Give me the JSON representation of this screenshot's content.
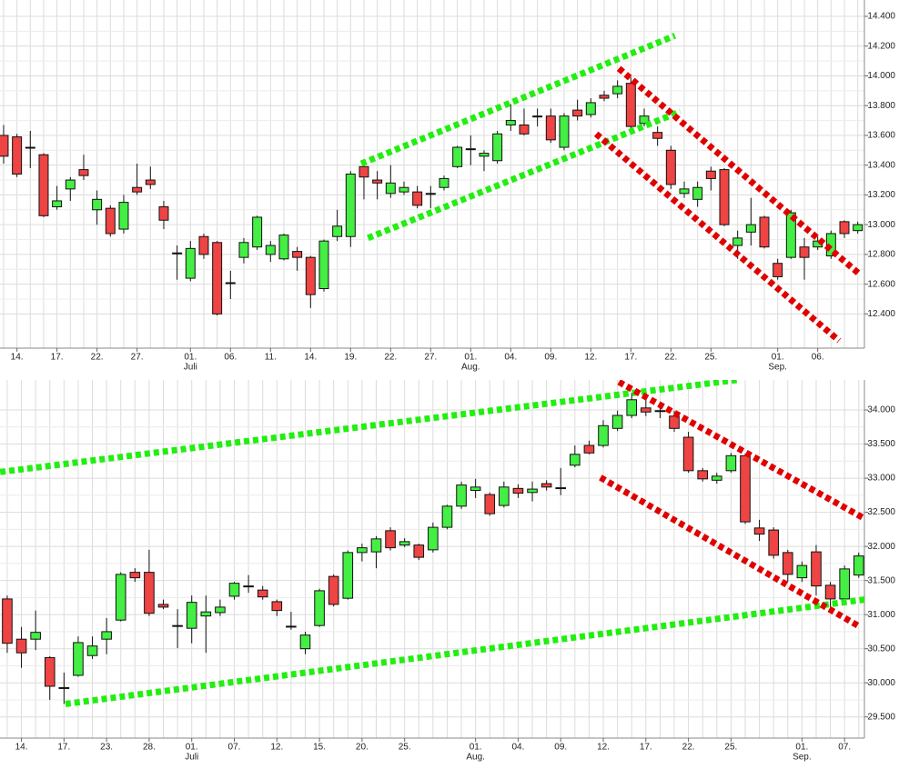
{
  "chart_data": [
    {
      "type": "candlestick",
      "categories": [
        null,
        "14.",
        null,
        null,
        "17.",
        null,
        null,
        "22.",
        null,
        null,
        "27.",
        null,
        null,
        null,
        "01.",
        null,
        null,
        "06.",
        null,
        null,
        "11.",
        null,
        null,
        "14.",
        null,
        null,
        "19.",
        null,
        null,
        "22.",
        null,
        null,
        "27.",
        null,
        null,
        "01.",
        null,
        null,
        "04.",
        null,
        null,
        "09.",
        null,
        null,
        "12.",
        null,
        null,
        "17.",
        null,
        null,
        "22.",
        null,
        null,
        "25.",
        null,
        null,
        null,
        null,
        "01.",
        null,
        null,
        "06.",
        null,
        null,
        null
      ],
      "sublabels": [
        null,
        null,
        null,
        null,
        null,
        null,
        null,
        null,
        null,
        null,
        null,
        null,
        null,
        null,
        "Juli",
        null,
        null,
        null,
        null,
        null,
        null,
        null,
        null,
        null,
        null,
        null,
        null,
        null,
        null,
        null,
        null,
        null,
        null,
        null,
        null,
        "Aug.",
        null,
        null,
        null,
        null,
        null,
        null,
        null,
        null,
        null,
        null,
        null,
        null,
        null,
        null,
        null,
        null,
        null,
        null,
        null,
        null,
        null,
        null,
        "Sep.",
        null,
        null,
        null,
        null,
        null,
        null
      ],
      "open": [
        13600,
        13590,
        13520,
        13470,
        13120,
        13240,
        13370,
        13100,
        13110,
        12970,
        13250,
        13300,
        13120,
        12810,
        12640,
        12920,
        12880,
        12610,
        12780,
        12850,
        12800,
        12770,
        12820,
        12780,
        12570,
        12920,
        12920,
        13390,
        13300,
        13210,
        13220,
        13220,
        13210,
        13250,
        13390,
        13510,
        13460,
        13430,
        13670,
        13670,
        13730,
        13730,
        13520,
        13770,
        13740,
        13870,
        13880,
        13950,
        13680,
        13620,
        13500,
        13210,
        13170,
        13360,
        13370,
        12860,
        12950,
        13050,
        12740,
        12780,
        12850,
        12850,
        12790,
        13020,
        12960
      ],
      "high": [
        13670,
        13610,
        13630,
        13480,
        13260,
        13320,
        13470,
        13230,
        13130,
        13200,
        13410,
        13390,
        13160,
        12860,
        12890,
        12940,
        12890,
        12690,
        12910,
        13060,
        12890,
        12940,
        12850,
        12790,
        12900,
        13100,
        13360,
        13420,
        13360,
        13400,
        13290,
        13260,
        13260,
        13330,
        13530,
        13600,
        13500,
        13630,
        13810,
        13780,
        13780,
        13780,
        13750,
        13840,
        13850,
        13900,
        13970,
        13990,
        13780,
        13660,
        13530,
        13290,
        13290,
        13390,
        13380,
        12960,
        13180,
        13060,
        12770,
        13100,
        12910,
        12920,
        12960,
        13030,
        13020
      ],
      "low": [
        13410,
        13320,
        13380,
        13050,
        13100,
        13160,
        13300,
        13000,
        12920,
        12940,
        13200,
        13240,
        12970,
        12630,
        12620,
        12770,
        12390,
        12500,
        12740,
        12830,
        12750,
        12760,
        12690,
        12440,
        12550,
        12890,
        12850,
        13170,
        13170,
        13180,
        13200,
        13110,
        13110,
        13230,
        13380,
        13400,
        13360,
        13410,
        13630,
        13600,
        13660,
        13550,
        13500,
        13700,
        13720,
        13830,
        13850,
        13640,
        13660,
        13530,
        13240,
        13180,
        13120,
        13230,
        12990,
        12770,
        12860,
        12840,
        12630,
        12770,
        12630,
        12830,
        12770,
        12910,
        12940
      ],
      "close": [
        13460,
        13340,
        13520,
        13060,
        13160,
        13300,
        13330,
        13170,
        12940,
        13150,
        13220,
        13270,
        13030,
        12810,
        12840,
        12800,
        12400,
        12610,
        12880,
        13050,
        12860,
        12930,
        12780,
        12530,
        12890,
        12990,
        13340,
        13320,
        13280,
        13280,
        13250,
        13130,
        13210,
        13310,
        13520,
        13510,
        13480,
        13610,
        13700,
        13610,
        13730,
        13570,
        13730,
        13730,
        13820,
        13850,
        13930,
        13660,
        13730,
        13580,
        13270,
        13240,
        13250,
        13310,
        13000,
        12910,
        13000,
        12850,
        12650,
        13080,
        12780,
        12890,
        12940,
        12940,
        13000
      ],
      "up_color": "#44ee44",
      "down_color": "#ee4444",
      "xlim": [
        -0.27,
        64.5
      ],
      "ylim": [
        12170,
        14510
      ],
      "yticks": [
        {
          "value": 12400,
          "label": "12.400"
        },
        {
          "value": 12600,
          "label": "12.600"
        },
        {
          "value": 12800,
          "label": "12.800"
        },
        {
          "value": 13000,
          "label": "13.000"
        },
        {
          "value": 13200,
          "label": "13.200"
        },
        {
          "value": 13400,
          "label": "13.400"
        },
        {
          "value": 13600,
          "label": "13.600"
        },
        {
          "value": 13800,
          "label": "13.800"
        },
        {
          "value": 14000,
          "label": "14.000"
        },
        {
          "value": 14200,
          "label": "14.200"
        },
        {
          "value": 14400,
          "label": "14.400"
        }
      ],
      "grid": true,
      "trendlines": [
        {
          "color": "#22ee11",
          "x": [
            26.8,
            50.3
          ],
          "y": [
            13410,
            14270
          ]
        },
        {
          "color": "#22ee11",
          "x": [
            27.3,
            50.7
          ],
          "y": [
            12910,
            13760
          ]
        },
        {
          "color": "#e00000",
          "x": [
            46.1,
            64.1
          ],
          "y": [
            14050,
            12670
          ]
        },
        {
          "color": "#e00000",
          "x": [
            44.4,
            62.6
          ],
          "y": [
            13610,
            12220
          ]
        }
      ]
    },
    {
      "type": "candlestick",
      "categories": [
        null,
        "14.",
        null,
        null,
        "17.",
        null,
        null,
        "23.",
        null,
        null,
        "28.",
        null,
        null,
        "01.",
        null,
        null,
        "07.",
        null,
        null,
        "12.",
        null,
        null,
        "15.",
        null,
        null,
        "20.",
        null,
        null,
        "25.",
        null,
        null,
        null,
        null,
        "01.",
        null,
        null,
        "04.",
        null,
        null,
        "09.",
        null,
        null,
        "12.",
        null,
        null,
        "17.",
        null,
        null,
        "22.",
        null,
        null,
        "25.",
        null,
        null,
        null,
        null,
        "01.",
        null,
        null,
        "07.",
        null
      ],
      "sublabels": [
        null,
        null,
        null,
        null,
        null,
        null,
        null,
        null,
        null,
        null,
        null,
        null,
        null,
        "Juli",
        null,
        null,
        null,
        null,
        null,
        null,
        null,
        null,
        null,
        null,
        null,
        null,
        null,
        null,
        null,
        null,
        null,
        null,
        null,
        "Aug.",
        null,
        null,
        null,
        null,
        null,
        null,
        null,
        null,
        null,
        null,
        null,
        null,
        null,
        null,
        null,
        null,
        null,
        null,
        null,
        null,
        null,
        null,
        "Sep.",
        null,
        null,
        null,
        null
      ],
      "open": [
        31230,
        30640,
        30640,
        30370,
        29930,
        30110,
        30400,
        30640,
        30920,
        31620,
        31620,
        31150,
        30840,
        30800,
        30980,
        31030,
        31270,
        31420,
        31360,
        31190,
        30830,
        30500,
        30840,
        31560,
        31240,
        31910,
        31920,
        32230,
        32020,
        32020,
        31950,
        32280,
        32590,
        32820,
        32760,
        32600,
        32850,
        32790,
        32920,
        32860,
        33190,
        33480,
        33480,
        33730,
        33920,
        34030,
        33990,
        33910,
        33600,
        33110,
        32970,
        33110,
        33330,
        32270,
        32240,
        31910,
        31540,
        31920,
        31430,
        31230,
        31580
      ],
      "high": [
        31280,
        30820,
        31060,
        30390,
        30150,
        30680,
        30680,
        30950,
        31620,
        31680,
        31950,
        31220,
        31080,
        31280,
        31280,
        31220,
        31480,
        31580,
        31420,
        31220,
        31040,
        30750,
        31380,
        31590,
        31940,
        32040,
        32150,
        32280,
        32120,
        32040,
        32350,
        32610,
        32950,
        32990,
        32790,
        32950,
        32910,
        32950,
        32970,
        33150,
        33480,
        33550,
        33850,
        33990,
        34250,
        34150,
        34110,
        33990,
        33680,
        33150,
        33080,
        33370,
        33360,
        32390,
        32280,
        31950,
        31780,
        32020,
        31480,
        31720,
        31910
      ],
      "low": [
        30440,
        30220,
        30480,
        29750,
        29690,
        30090,
        30350,
        30420,
        30900,
        31480,
        30980,
        31080,
        30510,
        30580,
        30440,
        30980,
        31220,
        31320,
        31220,
        30980,
        30780,
        30420,
        30820,
        31120,
        31220,
        31780,
        31680,
        31940,
        31990,
        31800,
        31910,
        32250,
        32550,
        32710,
        32450,
        32570,
        32710,
        32660,
        32820,
        32750,
        33160,
        33350,
        33450,
        33690,
        33880,
        33910,
        33880,
        33680,
        33080,
        32950,
        32920,
        33080,
        32330,
        32080,
        31820,
        31480,
        31480,
        31280,
        31110,
        31190,
        31540
      ],
      "close": [
        30580,
        30440,
        30740,
        29950,
        29930,
        30590,
        30540,
        30750,
        31590,
        31540,
        31020,
        31110,
        30840,
        31180,
        31040,
        31110,
        31460,
        31420,
        31260,
        31060,
        30830,
        30700,
        31350,
        31150,
        31910,
        31980,
        32110,
        31980,
        32070,
        31840,
        32280,
        32590,
        32900,
        32870,
        32480,
        32870,
        32780,
        32840,
        32870,
        32860,
        33350,
        33370,
        33770,
        33920,
        34150,
        33970,
        33990,
        33730,
        33110,
        32990,
        33030,
        33330,
        32360,
        32180,
        31870,
        31590,
        31720,
        31420,
        31230,
        31670,
        31860
      ],
      "up_color": "#44ee44",
      "down_color": "#ee4444",
      "xlim": [
        -0.51,
        60.4
      ],
      "ylim": [
        29190,
        34440
      ],
      "yticks": [
        {
          "value": 29500,
          "label": "29.500"
        },
        {
          "value": 30000,
          "label": "30.000"
        },
        {
          "value": 30500,
          "label": "30.500"
        },
        {
          "value": 31000,
          "label": "31.000"
        },
        {
          "value": 31500,
          "label": "31.500"
        },
        {
          "value": 32000,
          "label": "32.000"
        },
        {
          "value": 32500,
          "label": "32.500"
        },
        {
          "value": 33000,
          "label": "33.000"
        },
        {
          "value": 33500,
          "label": "33.500"
        },
        {
          "value": 34000,
          "label": "34.000"
        }
      ],
      "grid": true,
      "trendlines": [
        {
          "color": "#22ee11",
          "x": [
            -0.5,
            51.4
          ],
          "y": [
            33090,
            34440
          ]
        },
        {
          "color": "#22ee11",
          "x": [
            4.1,
            60.4
          ],
          "y": [
            29690,
            31220
          ]
        },
        {
          "color": "#e00000",
          "x": [
            43.1,
            60.3
          ],
          "y": [
            34410,
            32420
          ]
        },
        {
          "color": "#e00000",
          "x": [
            41.8,
            60.1
          ],
          "y": [
            33010,
            30820
          ]
        }
      ]
    }
  ]
}
